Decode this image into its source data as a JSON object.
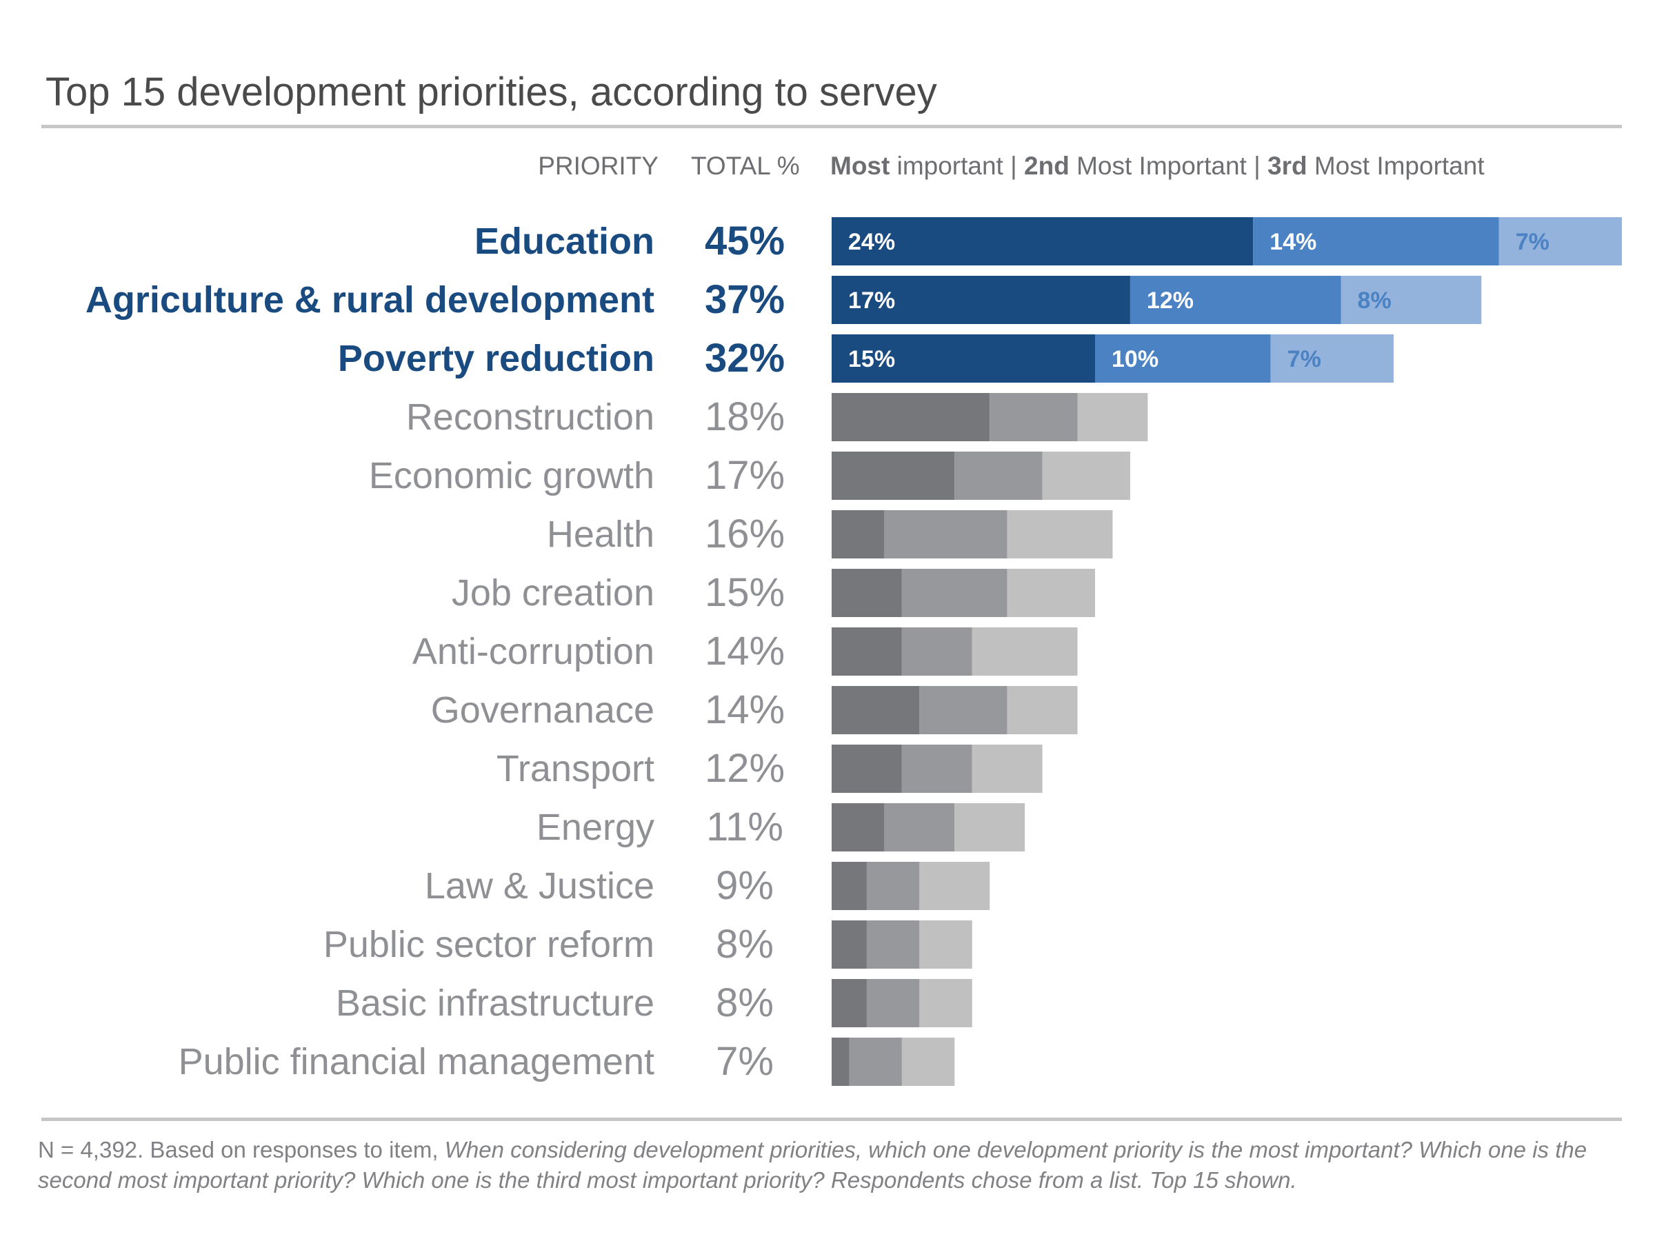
{
  "title": "Top 15 development priorities, according to servey",
  "headers": {
    "priority": "PRIORITY",
    "total": "TOTAL %",
    "legend": [
      {
        "bold": "Most",
        "rest": " important | "
      },
      {
        "bold": "2nd",
        "rest": " Most Important | "
      },
      {
        "bold": "3rd",
        "rest": " Most Important"
      }
    ]
  },
  "colors": {
    "highlight_text": "#1a4b80",
    "muted_text": "#8f9094",
    "highlight_segments": [
      "#1a4b80",
      "#4a82c3",
      "#93b2dc"
    ],
    "muted_segments": [
      "#76777b",
      "#97989c",
      "#c0c0c1"
    ],
    "label_light": "#ffffff",
    "label_on_third": "#4a82c3"
  },
  "chart_data": {
    "type": "bar",
    "orientation": "horizontal",
    "stacked": true,
    "series": [
      {
        "name": "Most important",
        "values": [
          24,
          17,
          15,
          9,
          7,
          3,
          4,
          4,
          5,
          4,
          3,
          2,
          2,
          2,
          1
        ]
      },
      {
        "name": "2nd Most Important",
        "values": [
          14,
          12,
          10,
          5,
          5,
          7,
          6,
          4,
          5,
          4,
          4,
          3,
          3,
          3,
          3
        ]
      },
      {
        "name": "3rd Most Important",
        "values": [
          7,
          8,
          7,
          4,
          5,
          6,
          5,
          6,
          4,
          4,
          4,
          4,
          3,
          3,
          3
        ]
      }
    ],
    "categories": [
      "Education",
      "Agriculture & rural development",
      "Poverty reduction",
      "Reconstruction",
      "Economic growth",
      "Health",
      "Job creation",
      "Anti-corruption",
      "Governanace",
      "Transport",
      "Energy",
      "Law & Justice",
      "Public sector reform",
      "Basic infrastructure",
      "Public financial management"
    ],
    "totals": [
      "45%",
      "37%",
      "32%",
      "18%",
      "17%",
      "16%",
      "15%",
      "14%",
      "14%",
      "12%",
      "11%",
      "9%",
      "8%",
      "8%",
      "7%"
    ],
    "highlighted": [
      true,
      true,
      true,
      false,
      false,
      false,
      false,
      false,
      false,
      false,
      false,
      false,
      false,
      false,
      false
    ],
    "segment_labels": [
      [
        "24%",
        "14%",
        "7%"
      ],
      [
        "17%",
        "12%",
        "8%"
      ],
      [
        "15%",
        "10%",
        "7%"
      ]
    ],
    "xlim": [
      0,
      45
    ]
  },
  "footnote": {
    "plain": "N = 4,392. Based on responses to item, ",
    "italic": "When considering development priorities, which one development priority is the most important? Which one is the second most important priority? Which one is the third most important priority? Respondents chose from a list. Top 15 shown."
  }
}
